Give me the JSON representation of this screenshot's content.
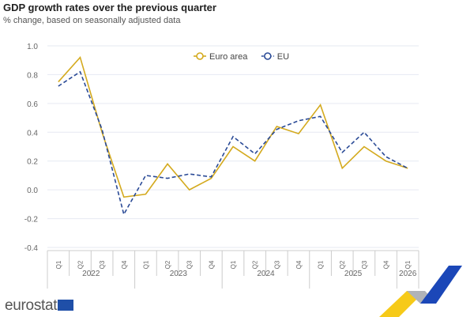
{
  "chart_data": {
    "type": "line",
    "title": "GDP growth rates over the previous quarter",
    "subtitle": "% change, based on seasonally adjusted data",
    "categories": [
      "Q1",
      "Q2",
      "Q3",
      "Q4",
      "Q1",
      "Q2",
      "Q3",
      "Q4",
      "Q1",
      "Q2",
      "Q3",
      "Q4",
      "Q1",
      "Q2",
      "Q3",
      "Q4",
      "Q1"
    ],
    "years": [
      {
        "label": "2022",
        "count": 4
      },
      {
        "label": "2023",
        "count": 4
      },
      {
        "label": "2024",
        "count": 4
      },
      {
        "label": "2025",
        "count": 4
      },
      {
        "label": "2026",
        "count": 1
      }
    ],
    "series": [
      {
        "name": "Euro area",
        "color": "#d4aa1e",
        "dashed": false,
        "values": [
          0.75,
          0.92,
          0.4,
          -0.05,
          -0.03,
          0.18,
          0.0,
          0.08,
          0.3,
          0.2,
          0.44,
          0.39,
          0.59,
          0.15,
          0.3,
          0.2,
          0.15
        ]
      },
      {
        "name": "EU",
        "color": "#2a4a96",
        "dashed": true,
        "values": [
          0.72,
          0.82,
          0.42,
          -0.17,
          0.1,
          0.08,
          0.11,
          0.09,
          0.37,
          0.25,
          0.42,
          0.48,
          0.51,
          0.26,
          0.4,
          0.23,
          0.15
        ]
      }
    ],
    "ylim": [
      -0.4,
      1.0
    ],
    "yticks": [
      "1.0",
      "0.8",
      "0.6",
      "0.4",
      "0.2",
      "0.0",
      "-0.2",
      "-0.4"
    ],
    "grid": true,
    "legend": "top-center"
  },
  "footer": {
    "brand": "eurostat"
  }
}
